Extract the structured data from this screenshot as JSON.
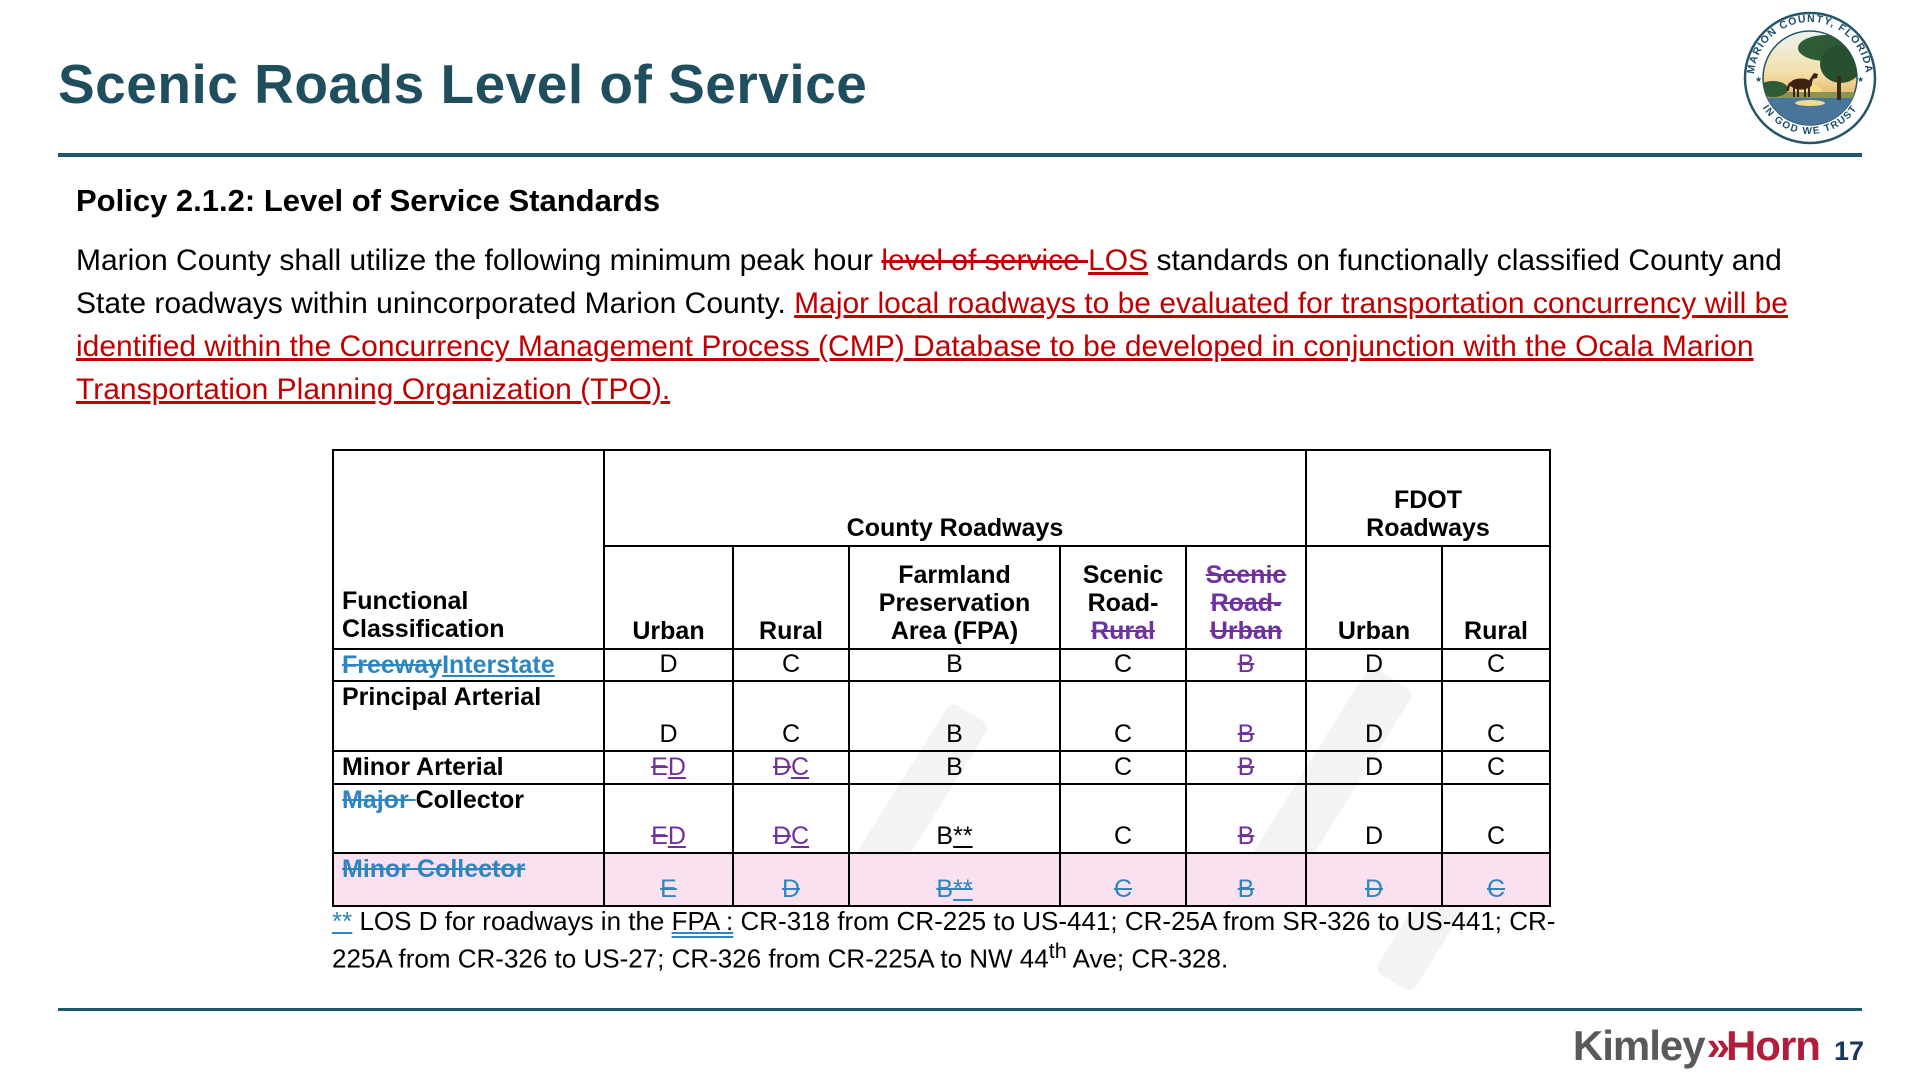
{
  "slide": {
    "title": "Scenic Roads Level of Service"
  },
  "seal": {
    "top_text": "MARION COUNTY, FLORIDA",
    "bottom_text": "IN GOD WE TRUST",
    "star": "★"
  },
  "policy": {
    "heading": "Policy 2.1.2: Level of Service Standards"
  },
  "paragraph": {
    "lead": "Marion County shall utilize the following minimum peak hour ",
    "deleted": "level of service ",
    "inserted_abbr": "LOS",
    "middle": " standards on functionally classified County and State roadways within unincorporated Marion County. ",
    "inserted_policy": "Major local roadways to be evaluated for transportation concurrency will be identified within the Concurrency Management Process (CMP) Database to be developed in conjunction with the Ocala Marion Transportation Planning Organization (TPO)."
  },
  "table": {
    "corner_header": "Functional Classification",
    "group_headers": {
      "county": "County Roadways",
      "fdot": "FDOT\nRoadways"
    },
    "column_headers": [
      {
        "segs": [
          {
            "t": "Urban"
          }
        ]
      },
      {
        "segs": [
          {
            "t": "Rural"
          }
        ]
      },
      {
        "segs": [
          {
            "t": "Farmland Preservation Area (FPA)"
          }
        ]
      },
      {
        "segs": [
          {
            "t": "Scenic Road-"
          },
          {
            "t": "Rural",
            "cls": "del purple"
          }
        ]
      },
      {
        "segs": [
          {
            "t": "Scenic Road-Urban",
            "cls": "del purple"
          }
        ]
      },
      {
        "segs": [
          {
            "t": "Urban"
          }
        ]
      },
      {
        "segs": [
          {
            "t": "Rural"
          }
        ]
      }
    ],
    "rows": [
      {
        "name": [
          {
            "t": "Freeway",
            "cls": "del blue"
          },
          {
            "t": "Interstate",
            "cls": "ins blue"
          }
        ],
        "cells": [
          [
            {
              "t": "D"
            }
          ],
          [
            {
              "t": "C"
            }
          ],
          [
            {
              "t": "B"
            }
          ],
          [
            {
              "t": "C"
            }
          ],
          [
            {
              "t": "B",
              "cls": "del purple"
            }
          ],
          [
            {
              "t": "D"
            }
          ],
          [
            {
              "t": "C"
            }
          ]
        ]
      },
      {
        "name": [
          {
            "t": "Principal Arterial"
          }
        ],
        "cells": [
          [
            {
              "t": "D"
            }
          ],
          [
            {
              "t": "C"
            }
          ],
          [
            {
              "t": "B"
            }
          ],
          [
            {
              "t": "C"
            }
          ],
          [
            {
              "t": "B",
              "cls": "del purple"
            }
          ],
          [
            {
              "t": "D"
            }
          ],
          [
            {
              "t": "C"
            }
          ]
        ]
      },
      {
        "name": [
          {
            "t": "Minor Arterial"
          }
        ],
        "cells": [
          [
            {
              "t": "E",
              "cls": "del purple"
            },
            {
              "t": "D",
              "cls": "ins purple"
            }
          ],
          [
            {
              "t": "D",
              "cls": "del purple"
            },
            {
              "t": "C",
              "cls": "ins purple"
            }
          ],
          [
            {
              "t": "B"
            }
          ],
          [
            {
              "t": "C"
            }
          ],
          [
            {
              "t": "B",
              "cls": "del purple"
            }
          ],
          [
            {
              "t": "D"
            }
          ],
          [
            {
              "t": "C"
            }
          ]
        ]
      },
      {
        "name": [
          {
            "t": "Major ",
            "cls": "del blue"
          },
          {
            "t": "Collector"
          }
        ],
        "cells": [
          [
            {
              "t": "E",
              "cls": "del purple"
            },
            {
              "t": "D",
              "cls": "ins purple"
            }
          ],
          [
            {
              "t": "D",
              "cls": "del purple"
            },
            {
              "t": "C",
              "cls": "ins purple"
            }
          ],
          [
            {
              "t": "B"
            },
            {
              "t": "**",
              "cls": "ins"
            }
          ],
          [
            {
              "t": "C"
            }
          ],
          [
            {
              "t": "B",
              "cls": "del purple"
            }
          ],
          [
            {
              "t": "D"
            }
          ],
          [
            {
              "t": "C"
            }
          ]
        ]
      },
      {
        "deleted": true,
        "name": [
          {
            "t": "Minor Collector",
            "cls": "del blue"
          }
        ],
        "cells": [
          [
            {
              "t": "E",
              "cls": "del blue"
            }
          ],
          [
            {
              "t": "D",
              "cls": "del blue"
            }
          ],
          [
            {
              "t": "B",
              "cls": "del blue"
            },
            {
              "t": "**",
              "cls": "del ins blue"
            }
          ],
          [
            {
              "t": "C",
              "cls": "del blue"
            }
          ],
          [
            {
              "t": "B",
              "cls": "del blue"
            }
          ],
          [
            {
              "t": "D",
              "cls": "del blue"
            }
          ],
          [
            {
              "t": "C",
              "cls": "del blue"
            }
          ]
        ]
      }
    ]
  },
  "footnote": {
    "marker": "**",
    "text_before_fpa": " LOS D for roadways in the ",
    "fpa_label": "FPA :",
    "text_after_fpa": " CR-318 from CR-225 to US-441; CR-25A from SR-326 to US-441; CR-225A from CR-326 to US-27; CR-326 from  CR-225A to NW 44",
    "ordinal_suffix": "th",
    "text_end": " Ave; CR-328."
  },
  "footer": {
    "brand_first": "Kimley",
    "brand_chevrons": "»",
    "brand_second": "Horn",
    "page_number": "17"
  },
  "colors": {
    "title_teal": "#1F4E5F",
    "accent_teal": "#215868",
    "track_red": "#C00000",
    "track_blue": "#2E86C1",
    "track_purple": "#7030A0",
    "pink_row": "#FAE1EF",
    "brand_gray": "#58595B",
    "brand_red": "#B01E3C",
    "page_num": "#17365D"
  }
}
